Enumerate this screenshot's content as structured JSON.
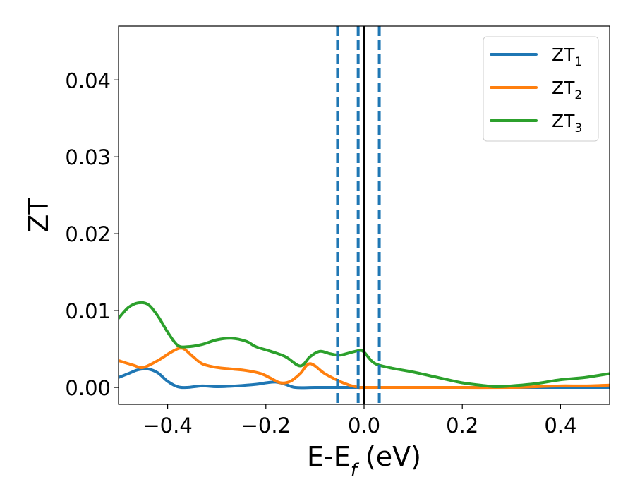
{
  "chart_data": {
    "type": "line",
    "xlabel": {
      "base": "E-E",
      "sub": "f",
      "suffix": " (eV)"
    },
    "ylabel": "ZT",
    "xlim": [
      -0.5,
      0.5
    ],
    "ylim": [
      -0.0022,
      0.047
    ],
    "xticks": [
      -0.4,
      -0.2,
      0.0,
      0.2,
      0.4
    ],
    "xtick_labels": [
      "−0.4",
      "−0.2",
      "0.0",
      "0.2",
      "0.4"
    ],
    "yticks": [
      0.0,
      0.01,
      0.02,
      0.03,
      0.04
    ],
    "ytick_labels": [
      "0.00",
      "0.01",
      "0.02",
      "0.03",
      "0.04"
    ],
    "grid": false,
    "legend_position": "top-right",
    "vlines": [
      {
        "x": -0.054,
        "style": "dashed",
        "color": "#1f77b4"
      },
      {
        "x": -0.012,
        "style": "dashed",
        "color": "#1f77b4"
      },
      {
        "x": 0.0,
        "style": "solid",
        "color": "#000000"
      },
      {
        "x": 0.031,
        "style": "dashed",
        "color": "#1f77b4"
      }
    ],
    "series": [
      {
        "name": "ZT",
        "sub": "1",
        "color": "#1f77b4",
        "x": [
          -0.5,
          -0.48,
          -0.46,
          -0.44,
          -0.42,
          -0.4,
          -0.38,
          -0.36,
          -0.33,
          -0.3,
          -0.26,
          -0.22,
          -0.2,
          -0.18,
          -0.16,
          -0.14,
          -0.1,
          -0.05,
          -0.02,
          0.0,
          0.1,
          0.2,
          0.3,
          0.4,
          0.5
        ],
        "y": [
          0.0013,
          0.0018,
          0.0023,
          0.0024,
          0.0019,
          0.0008,
          0.0001,
          0.0,
          0.0002,
          0.0001,
          0.0002,
          0.0004,
          0.0006,
          0.0007,
          0.0004,
          0.0,
          0.0,
          0.0,
          0.0,
          0.0,
          0.0,
          0.0,
          0.0,
          0.0,
          0.0
        ]
      },
      {
        "name": "ZT",
        "sub": "2",
        "color": "#ff7f0e",
        "x": [
          -0.5,
          -0.47,
          -0.45,
          -0.42,
          -0.39,
          -0.37,
          -0.35,
          -0.33,
          -0.3,
          -0.27,
          -0.24,
          -0.21,
          -0.19,
          -0.17,
          -0.15,
          -0.13,
          -0.11,
          -0.08,
          -0.05,
          -0.03,
          -0.01,
          0.0,
          0.1,
          0.2,
          0.3,
          0.35,
          0.4,
          0.45,
          0.5
        ],
        "y": [
          0.0035,
          0.0029,
          0.0026,
          0.0035,
          0.0047,
          0.0051,
          0.0041,
          0.0031,
          0.0026,
          0.0024,
          0.0022,
          0.0018,
          0.0012,
          0.0006,
          0.0008,
          0.0018,
          0.0031,
          0.0018,
          0.0008,
          0.0003,
          0.0,
          0.0,
          0.0,
          0.0,
          0.0,
          0.0001,
          0.0002,
          0.0002,
          0.0003
        ]
      },
      {
        "name": "ZT",
        "sub": "3",
        "color": "#2ca02c",
        "x": [
          -0.5,
          -0.48,
          -0.46,
          -0.44,
          -0.42,
          -0.4,
          -0.38,
          -0.36,
          -0.33,
          -0.3,
          -0.27,
          -0.24,
          -0.22,
          -0.19,
          -0.16,
          -0.13,
          -0.11,
          -0.09,
          -0.07,
          -0.05,
          -0.03,
          -0.01,
          0.0,
          0.02,
          0.05,
          0.1,
          0.15,
          0.2,
          0.25,
          0.27,
          0.3,
          0.35,
          0.4,
          0.45,
          0.5
        ],
        "y": [
          0.009,
          0.0104,
          0.011,
          0.0108,
          0.0093,
          0.0072,
          0.0055,
          0.0053,
          0.0056,
          0.0062,
          0.0064,
          0.006,
          0.0053,
          0.0047,
          0.004,
          0.0028,
          0.004,
          0.0047,
          0.0044,
          0.0042,
          0.0045,
          0.0048,
          0.0046,
          0.0032,
          0.0026,
          0.002,
          0.0013,
          0.0006,
          0.0002,
          0.0001,
          0.0002,
          0.0005,
          0.001,
          0.0013,
          0.0018
        ]
      }
    ]
  }
}
